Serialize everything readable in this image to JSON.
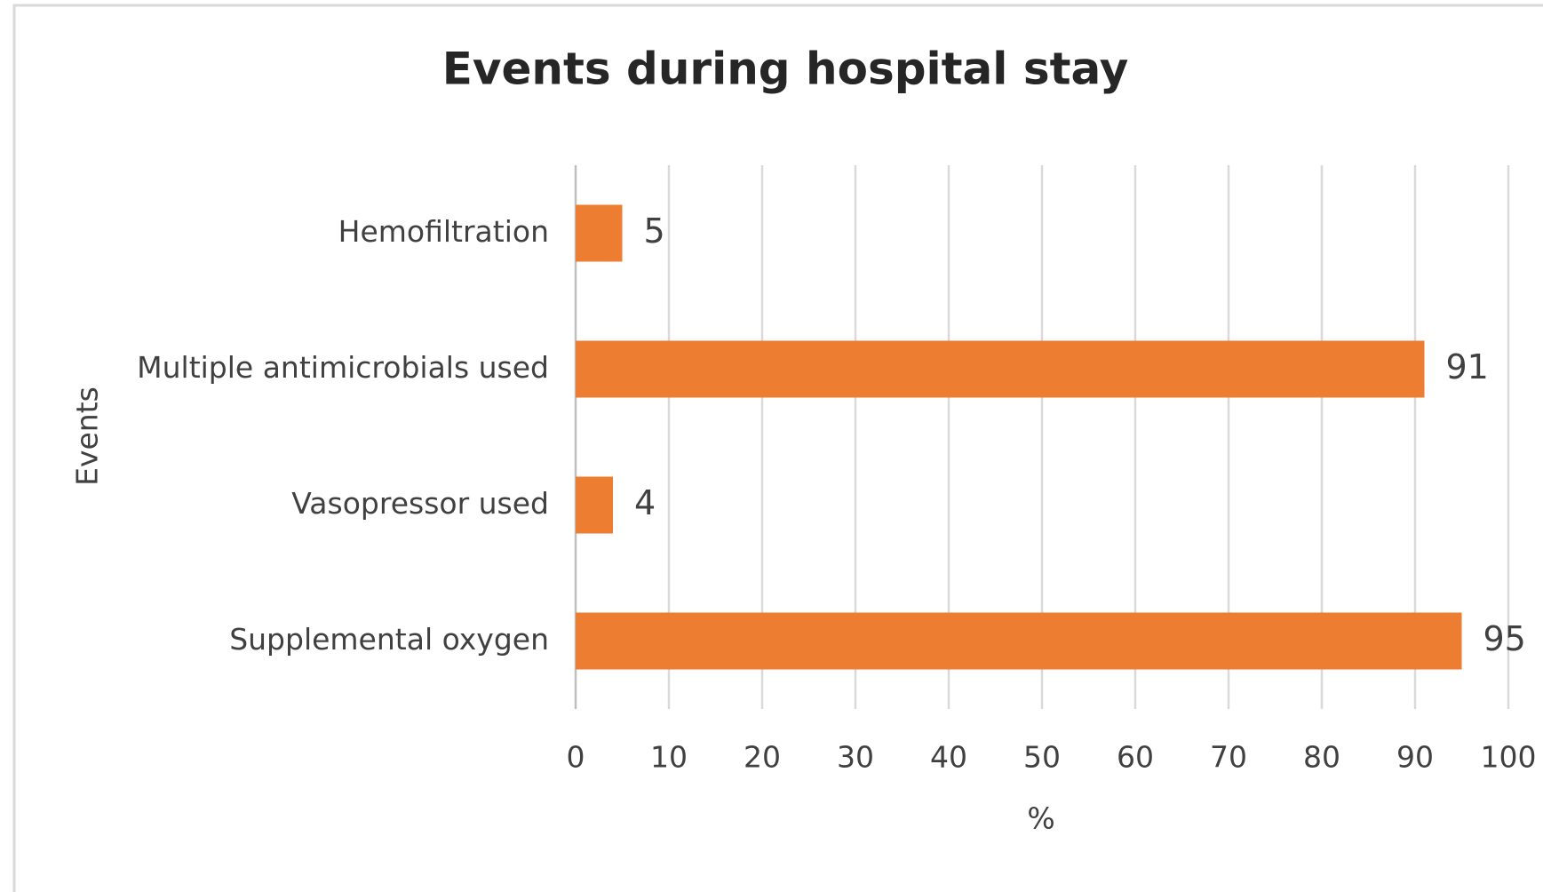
{
  "chart_data": {
    "type": "bar",
    "orientation": "horizontal",
    "title": "Events during hospital stay",
    "categories": [
      "Hemofiltration",
      "Multiple antimicrobials used",
      "Vasopressor used",
      "Supplemental oxygen"
    ],
    "values": [
      5,
      91,
      4,
      95
    ],
    "color": "#ed7d31",
    "xlabel": "%",
    "ylabel": "Events",
    "xlim": [
      0,
      100
    ],
    "xticks": [
      0,
      10,
      20,
      30,
      40,
      50,
      60,
      70,
      80,
      90,
      100
    ],
    "grid": true
  }
}
